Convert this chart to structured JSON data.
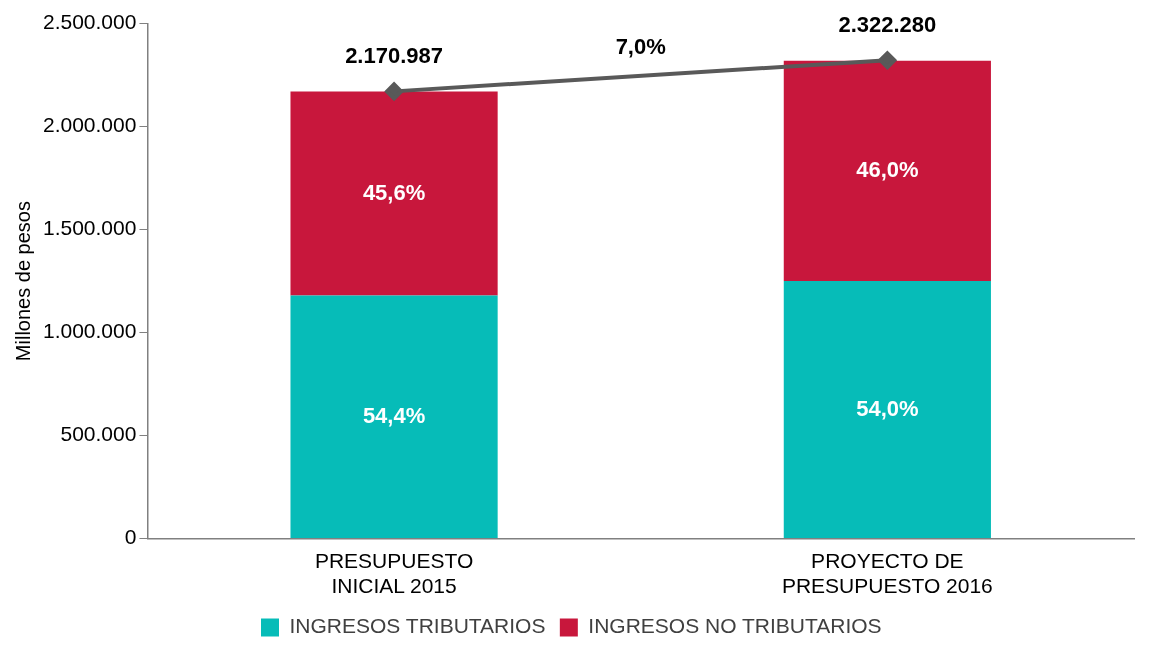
{
  "chart_data": {
    "type": "bar",
    "stacked": true,
    "ylabel": "Millones de pesos",
    "categories": [
      "PRESUPUESTO INICIAL 2015",
      "PROYECTO DE PRESUPUESTO 2016"
    ],
    "series": [
      {
        "name": "INGRESOS TRIBUTARIOS",
        "color": "#06bcb8",
        "values": [
          1180000,
          1250000
        ]
      },
      {
        "name": "INGRESOS NO TRIBUTARIOS",
        "color": "#c8173c",
        "values": [
          990000,
          1070000
        ]
      },
      {
        "type": "line",
        "color": "#595959",
        "marker": "diamond",
        "values": [
          2170987,
          2322280
        ],
        "value_labels": [
          "2.170.987",
          "2.322.280"
        ]
      }
    ],
    "annotations": [
      "7,0%",
      "54,4%",
      "54,0%",
      "45,6%",
      "46,0%"
    ],
    "ylim": [
      0,
      2500000
    ],
    "yticks": [
      {
        "value": 0,
        "label": "0"
      },
      {
        "value": 500000,
        "label": "500.000"
      },
      {
        "value": 1000000,
        "label": "1.000.000"
      },
      {
        "value": 1500000,
        "label": "1.500.000"
      },
      {
        "value": 2000000,
        "label": "2.000.000"
      },
      {
        "value": 2500000,
        "label": "2.500.000"
      }
    ],
    "grid": false,
    "legend": "bottom"
  }
}
